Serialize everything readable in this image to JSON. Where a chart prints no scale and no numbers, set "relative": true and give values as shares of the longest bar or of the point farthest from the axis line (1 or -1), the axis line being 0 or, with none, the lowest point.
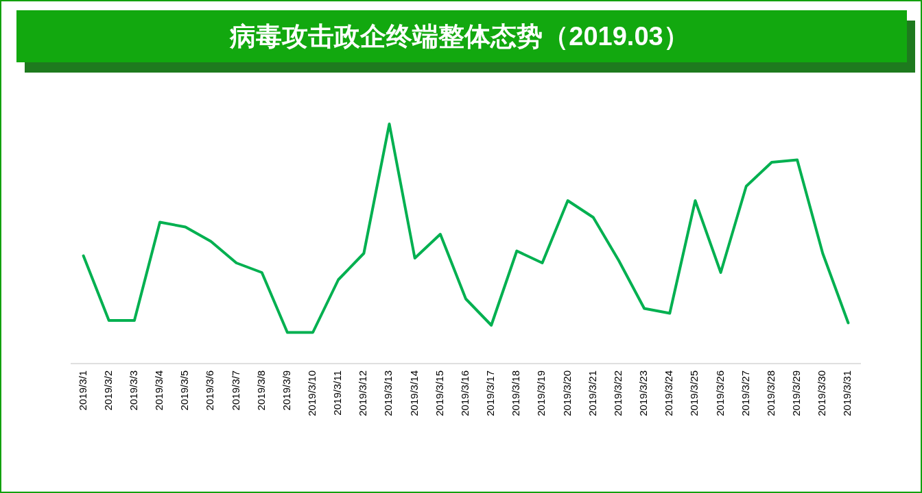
{
  "chart_data": {
    "type": "line",
    "title": "病毒攻击政企终端整体态势（2019.03）",
    "relative": true,
    "categories": [
      "2019/3/1",
      "2019/3/2",
      "2019/3/3",
      "2019/3/4",
      "2019/3/5",
      "2019/3/6",
      "2019/3/7",
      "2019/3/8",
      "2019/3/9",
      "2019/3/10",
      "2019/3/11",
      "2019/3/12",
      "2019/3/13",
      "2019/3/14",
      "2019/3/15",
      "2019/3/16",
      "2019/3/17",
      "2019/3/18",
      "2019/3/19",
      "2019/3/20",
      "2019/3/21",
      "2019/3/22",
      "2019/3/23",
      "2019/3/24",
      "2019/3/25",
      "2019/3/26",
      "2019/3/27",
      "2019/3/28",
      "2019/3/29",
      "2019/3/30",
      "2019/3/31"
    ],
    "series": [
      {
        "color": "#00b050",
        "values": [
          0.45,
          0.18,
          0.18,
          0.59,
          0.57,
          0.51,
          0.42,
          0.38,
          0.13,
          0.13,
          0.35,
          0.46,
          1,
          0.44,
          0.54,
          0.27,
          0.16,
          0.47,
          0.42,
          0.68,
          0.61,
          0.43,
          0.23,
          0.21,
          0.68,
          0.38,
          0.74,
          0.84,
          0.85,
          0.46,
          0.17
        ]
      }
    ]
  }
}
